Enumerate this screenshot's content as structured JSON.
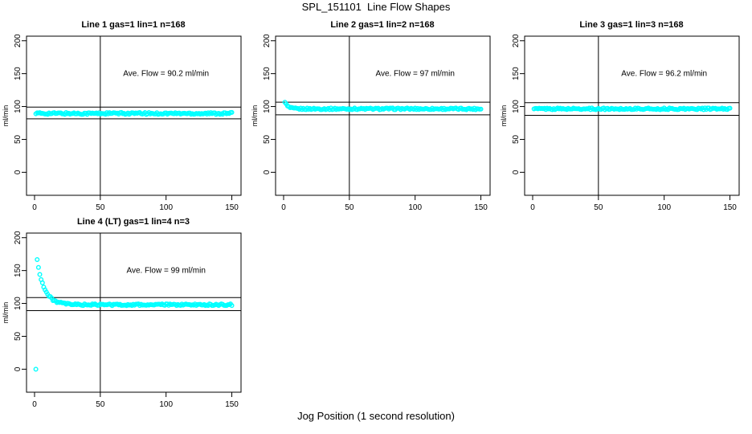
{
  "figure": {
    "title": "SPL_151101  Line Flow Shapes",
    "xlabel": "Jog Position (1 second resolution)",
    "ylabel": "ml/min"
  },
  "colors": {
    "points": "#00FFFF",
    "axis": "#000000",
    "background": "#FFFFFF"
  },
  "chart_data": {
    "type": "scatter",
    "marker": "open-circle",
    "point_color": "#00FFFF",
    "grid": false,
    "x_ticks": [
      0,
      50,
      100,
      150
    ],
    "y_ticks": [
      0,
      50,
      100,
      150,
      200
    ],
    "xlim": [
      -6.1,
      157
    ],
    "ylim": [
      -35,
      207
    ],
    "vline_x": 50,
    "annotation_anchor": {
      "x": 100,
      "y": 150
    },
    "panels": [
      {
        "title": "Line 1 gas=1 lin=1 n=168",
        "n": 168,
        "ave_flow": 90.2,
        "annotation": "Ave. Flow =  90.2  ml/min",
        "hlines": [
          99.2,
          81.2
        ],
        "series_gen": {
          "x_start": 1,
          "x_end": 150,
          "flat": 89.5,
          "jitter": 1.5,
          "transient_amp": 0,
          "transient_tau": 1,
          "outliers": []
        },
        "points_sample": [
          [
            1,
            90
          ],
          [
            10,
            89
          ],
          [
            25,
            90
          ],
          [
            50,
            89
          ],
          [
            75,
            90
          ],
          [
            100,
            89
          ],
          [
            125,
            90
          ],
          [
            150,
            89
          ]
        ]
      },
      {
        "title": "Line 2 gas=1 lin=2 n=168",
        "n": 168,
        "ave_flow": 97,
        "annotation": "Ave. Flow =  97  ml/min",
        "hlines": [
          106.7,
          87.3
        ],
        "series_gen": {
          "x_start": 1,
          "x_end": 150,
          "flat": 96.5,
          "jitter": 1.3,
          "transient_amp": 11,
          "transient_tau": 2,
          "outliers": []
        },
        "points_sample": [
          [
            1,
            107
          ],
          [
            2,
            103
          ],
          [
            4,
            99
          ],
          [
            10,
            97
          ],
          [
            50,
            96
          ],
          [
            100,
            97
          ],
          [
            150,
            96
          ]
        ]
      },
      {
        "title": "Line 3 gas=1 lin=3 n=168",
        "n": 168,
        "ave_flow": 96.2,
        "annotation": "Ave. Flow =  96.2  ml/min",
        "hlines": [
          105.8,
          86.6
        ],
        "series_gen": {
          "x_start": 1,
          "x_end": 150,
          "flat": 96.5,
          "jitter": 1.3,
          "transient_amp": 0,
          "transient_tau": 1,
          "outliers": []
        },
        "points_sample": [
          [
            1,
            96
          ],
          [
            25,
            96
          ],
          [
            50,
            97
          ],
          [
            100,
            96
          ],
          [
            150,
            96
          ]
        ]
      },
      {
        "title": "Line 4 (LT) gas=1 lin=4 n=3",
        "n": 3,
        "ave_flow": 99,
        "annotation": "Ave. Flow =  99  ml/min",
        "hlines": [
          108.9,
          89.1
        ],
        "series_gen": {
          "x_start": 2,
          "x_end": 150,
          "flat": 98,
          "jitter": 1.4,
          "transient_amp": 68,
          "transient_tau": 5.5,
          "outliers": [
            [
              1,
              0
            ]
          ]
        },
        "points_sample": [
          [
            1,
            0
          ],
          [
            2,
            165
          ],
          [
            4,
            150
          ],
          [
            6,
            135
          ],
          [
            8,
            122
          ],
          [
            10,
            112
          ],
          [
            13,
            104
          ],
          [
            16,
            100
          ],
          [
            20,
            98
          ],
          [
            50,
            98
          ],
          [
            100,
            98
          ],
          [
            150,
            97
          ]
        ]
      }
    ]
  }
}
